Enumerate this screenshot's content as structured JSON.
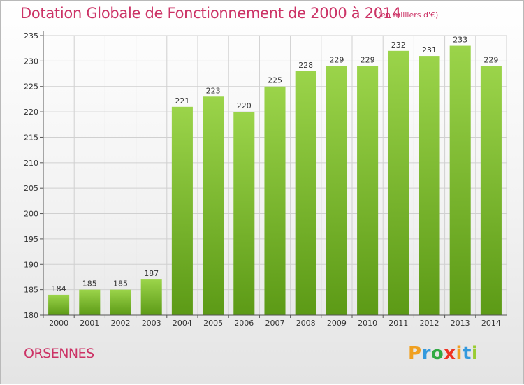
{
  "title": "Dotation Globale de Fonctionnement de 2000 à 2014",
  "unit_note": "(en milliers d'€)",
  "place": "ORSENNES",
  "logo": {
    "letters": [
      "P",
      "r",
      "o",
      "x",
      "i",
      "t",
      "i"
    ],
    "colors": [
      "#f0a020",
      "#3399dd",
      "#33aa44",
      "#ee3322",
      "#f0a020",
      "#3399dd",
      "#99cc33"
    ]
  },
  "colors": {
    "bar_light": "#9bd44a",
    "bar_dark": "#5c9a16",
    "title": "#cc3366",
    "grid": "#d0d0d0"
  },
  "chart_data": {
    "type": "bar",
    "categories": [
      "2000",
      "2001",
      "2002",
      "2003",
      "2004",
      "2005",
      "2006",
      "2007",
      "2008",
      "2009",
      "2010",
      "2011",
      "2012",
      "2013",
      "2014"
    ],
    "values": [
      184,
      185,
      185,
      187,
      221,
      223,
      220,
      225,
      228,
      229,
      229,
      232,
      231,
      233,
      229
    ],
    "ylim": [
      180,
      235
    ],
    "yticks": [
      180,
      185,
      190,
      195,
      200,
      205,
      210,
      215,
      220,
      225,
      230,
      235
    ],
    "grid": true
  }
}
